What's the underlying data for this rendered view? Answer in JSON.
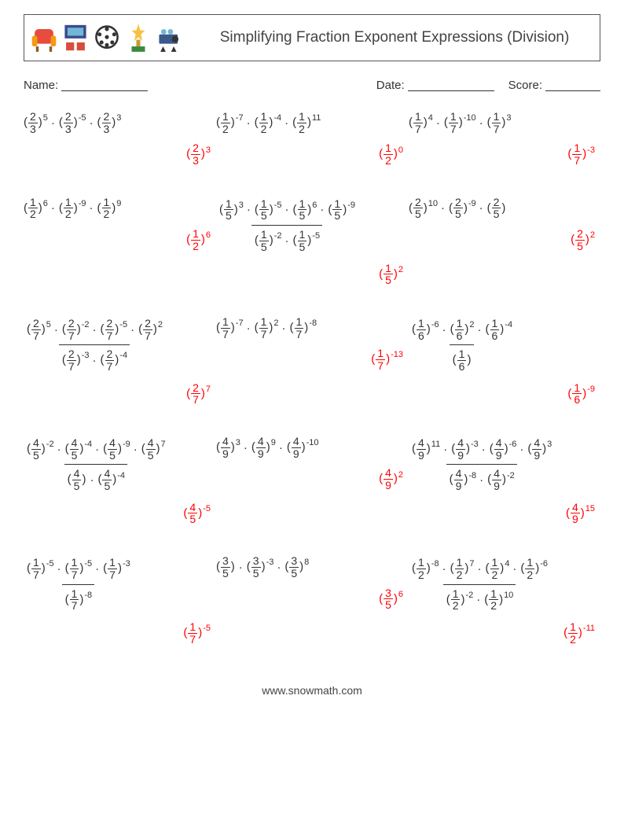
{
  "title": "Simplifying Fraction Exponent Expressions (Division)",
  "meta": {
    "name_label": "Name:",
    "date_label": "Date:",
    "score_label": "Score:"
  },
  "footer": "www.snowmath.com",
  "colors": {
    "question": "#333333",
    "answer": "#ff0000"
  },
  "icons": [
    {
      "name": "armchair-icon",
      "label": "armchair"
    },
    {
      "name": "cinema-icon",
      "label": "cinema"
    },
    {
      "name": "film-reel-icon",
      "label": "film-reel"
    },
    {
      "name": "trophy-icon",
      "label": "trophy"
    },
    {
      "name": "projector-icon",
      "label": "projector"
    }
  ],
  "problems": [
    {
      "numerator": [
        {
          "n": 2,
          "d": 3,
          "e": 5
        },
        {
          "n": 2,
          "d": 3,
          "e": -5
        },
        {
          "n": 2,
          "d": 3,
          "e": 3
        }
      ],
      "denominator": null,
      "answer": {
        "n": 2,
        "d": 3,
        "e": 3
      }
    },
    {
      "numerator": [
        {
          "n": 1,
          "d": 2,
          "e": -7
        },
        {
          "n": 1,
          "d": 2,
          "e": -4
        },
        {
          "n": 1,
          "d": 2,
          "e": 11
        }
      ],
      "denominator": null,
      "answer": {
        "n": 1,
        "d": 2,
        "e": 0
      }
    },
    {
      "numerator": [
        {
          "n": 1,
          "d": 7,
          "e": 4
        },
        {
          "n": 1,
          "d": 7,
          "e": -10
        },
        {
          "n": 1,
          "d": 7,
          "e": 3
        }
      ],
      "denominator": null,
      "answer": {
        "n": 1,
        "d": 7,
        "e": -3
      }
    },
    {
      "numerator": [
        {
          "n": 1,
          "d": 2,
          "e": 6
        },
        {
          "n": 1,
          "d": 2,
          "e": -9
        },
        {
          "n": 1,
          "d": 2,
          "e": 9
        }
      ],
      "denominator": null,
      "answer": {
        "n": 1,
        "d": 2,
        "e": 6
      }
    },
    {
      "numerator": [
        {
          "n": 1,
          "d": 5,
          "e": 3
        },
        {
          "n": 1,
          "d": 5,
          "e": -5
        },
        {
          "n": 1,
          "d": 5,
          "e": 6
        },
        {
          "n": 1,
          "d": 5,
          "e": -9
        }
      ],
      "denominator": [
        {
          "n": 1,
          "d": 5,
          "e": -2
        },
        {
          "n": 1,
          "d": 5,
          "e": -5
        }
      ],
      "answer": {
        "n": 1,
        "d": 5,
        "e": 2
      }
    },
    {
      "numerator": [
        {
          "n": 2,
          "d": 5,
          "e": 10
        },
        {
          "n": 2,
          "d": 5,
          "e": -9
        },
        {
          "n": 2,
          "d": 5,
          "e": null
        }
      ],
      "denominator": null,
      "answer": {
        "n": 2,
        "d": 5,
        "e": 2
      }
    },
    {
      "numerator": [
        {
          "n": 2,
          "d": 7,
          "e": 5
        },
        {
          "n": 2,
          "d": 7,
          "e": -2
        },
        {
          "n": 2,
          "d": 7,
          "e": -5
        },
        {
          "n": 2,
          "d": 7,
          "e": 2
        }
      ],
      "denominator": [
        {
          "n": 2,
          "d": 7,
          "e": -3
        },
        {
          "n": 2,
          "d": 7,
          "e": -4
        }
      ],
      "answer": {
        "n": 2,
        "d": 7,
        "e": 7
      }
    },
    {
      "numerator": [
        {
          "n": 1,
          "d": 7,
          "e": -7
        },
        {
          "n": 1,
          "d": 7,
          "e": 2
        },
        {
          "n": 1,
          "d": 7,
          "e": -8
        }
      ],
      "denominator": null,
      "answer": {
        "n": 1,
        "d": 7,
        "e": -13
      }
    },
    {
      "numerator": [
        {
          "n": 1,
          "d": 6,
          "e": -6
        },
        {
          "n": 1,
          "d": 6,
          "e": 2
        },
        {
          "n": 1,
          "d": 6,
          "e": -4
        }
      ],
      "denominator": [
        {
          "n": 1,
          "d": 6,
          "e": null
        }
      ],
      "answer": {
        "n": 1,
        "d": 6,
        "e": -9
      }
    },
    {
      "numerator": [
        {
          "n": 4,
          "d": 5,
          "e": -2
        },
        {
          "n": 4,
          "d": 5,
          "e": -4
        },
        {
          "n": 4,
          "d": 5,
          "e": -9
        },
        {
          "n": 4,
          "d": 5,
          "e": 7
        }
      ],
      "denominator": [
        {
          "n": 4,
          "d": 5,
          "e": null
        },
        {
          "n": 4,
          "d": 5,
          "e": -4
        }
      ],
      "answer": {
        "n": 4,
        "d": 5,
        "e": -5
      }
    },
    {
      "numerator": [
        {
          "n": 4,
          "d": 9,
          "e": 3
        },
        {
          "n": 4,
          "d": 9,
          "e": 9
        },
        {
          "n": 4,
          "d": 9,
          "e": -10
        }
      ],
      "denominator": null,
      "answer": {
        "n": 4,
        "d": 9,
        "e": 2
      }
    },
    {
      "numerator": [
        {
          "n": 4,
          "d": 9,
          "e": 11
        },
        {
          "n": 4,
          "d": 9,
          "e": -3
        },
        {
          "n": 4,
          "d": 9,
          "e": -6
        },
        {
          "n": 4,
          "d": 9,
          "e": 3
        }
      ],
      "denominator": [
        {
          "n": 4,
          "d": 9,
          "e": -8
        },
        {
          "n": 4,
          "d": 9,
          "e": -2
        }
      ],
      "answer": {
        "n": 4,
        "d": 9,
        "e": 15
      }
    },
    {
      "numerator": [
        {
          "n": 1,
          "d": 7,
          "e": -5
        },
        {
          "n": 1,
          "d": 7,
          "e": -5
        },
        {
          "n": 1,
          "d": 7,
          "e": -3
        }
      ],
      "denominator": [
        {
          "n": 1,
          "d": 7,
          "e": -8
        }
      ],
      "answer": {
        "n": 1,
        "d": 7,
        "e": -5
      }
    },
    {
      "numerator": [
        {
          "n": 3,
          "d": 5,
          "e": null
        },
        {
          "n": 3,
          "d": 5,
          "e": -3
        },
        {
          "n": 3,
          "d": 5,
          "e": 8
        }
      ],
      "denominator": null,
      "answer": {
        "n": 3,
        "d": 5,
        "e": 6
      }
    },
    {
      "numerator": [
        {
          "n": 1,
          "d": 2,
          "e": -8
        },
        {
          "n": 1,
          "d": 2,
          "e": 7
        },
        {
          "n": 1,
          "d": 2,
          "e": 4
        },
        {
          "n": 1,
          "d": 2,
          "e": -6
        }
      ],
      "denominator": [
        {
          "n": 1,
          "d": 2,
          "e": -2
        },
        {
          "n": 1,
          "d": 2,
          "e": 10
        }
      ],
      "answer": {
        "n": 1,
        "d": 2,
        "e": -11
      }
    }
  ]
}
